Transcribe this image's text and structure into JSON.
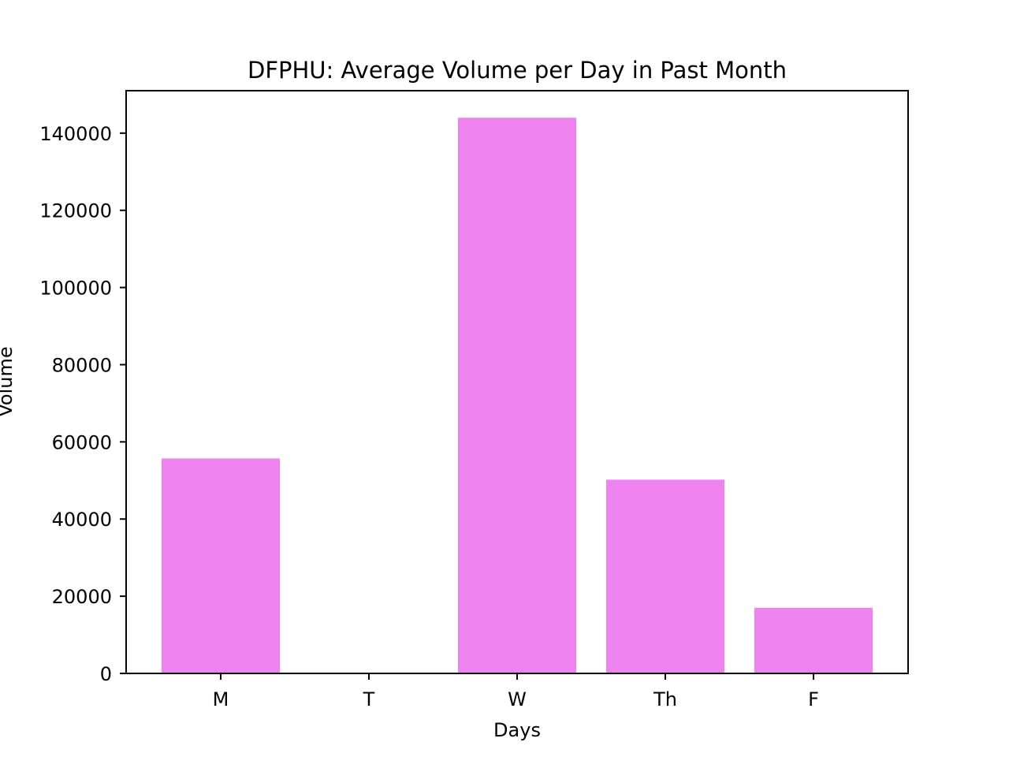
{
  "chart_data": {
    "type": "bar",
    "title": "DFPHU: Average Volume per Day in Past Month",
    "xlabel": "Days",
    "ylabel": "Volume",
    "categories": [
      "M",
      "T",
      "W",
      "Th",
      "F"
    ],
    "values": [
      55700,
      0,
      144000,
      50200,
      17000
    ],
    "ylim": [
      0,
      151000
    ],
    "yticks": [
      0,
      20000,
      40000,
      60000,
      80000,
      100000,
      120000,
      140000
    ],
    "bar_color": "#ee82ee",
    "grid": false,
    "legend": "none"
  }
}
